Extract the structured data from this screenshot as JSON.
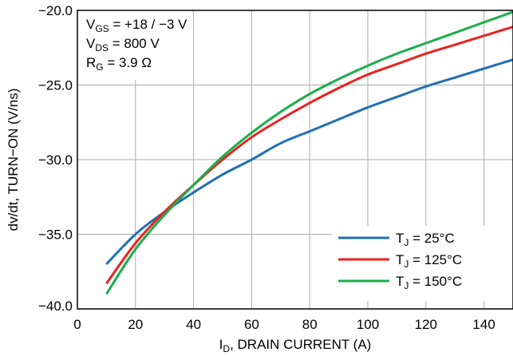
{
  "chart_data": {
    "type": "line",
    "title": "",
    "xlabel_main": "I",
    "xlabel_sub": "D",
    "xlabel_rest": ", DRAIN CURRENT (A)",
    "ylabel": "dv/dt, TURN−ON (V/ns)",
    "xlim": [
      0,
      150
    ],
    "ylim": [
      -40,
      -20
    ],
    "x_ticks": [
      0,
      20,
      40,
      60,
      80,
      100,
      120,
      140
    ],
    "x_tick_labels": [
      "0",
      "20",
      "40",
      "60",
      "80",
      "100",
      "120",
      "140"
    ],
    "y_ticks": [
      -40,
      -35,
      -30,
      -25,
      -20
    ],
    "y_tick_labels": [
      "−40.0",
      "−35.0",
      "−30.0",
      "−25.0",
      "−20.0"
    ],
    "grid": true,
    "conditions": [
      {
        "main": "V",
        "sub": "GS",
        "rest": " = +18 / −3 V"
      },
      {
        "main": "V",
        "sub": "DS",
        "rest": " = 800 V"
      },
      {
        "main": "R",
        "sub": "G",
        "rest": " = 3.9 Ω"
      }
    ],
    "legend_position": "bottom-right",
    "series": [
      {
        "legend_main": "T",
        "legend_sub": "J",
        "legend_rest": " = 25°C",
        "color": "#1f6fb5",
        "x": [
          10,
          20,
          30,
          40,
          50,
          60,
          70,
          80,
          90,
          100,
          110,
          120,
          130,
          140,
          150
        ],
        "y": [
          -37.0,
          -35.0,
          -33.5,
          -32.2,
          -31.0,
          -30.0,
          -28.9,
          -28.1,
          -27.3,
          -26.5,
          -25.8,
          -25.1,
          -24.5,
          -23.9,
          -23.3
        ]
      },
      {
        "legend_main": "T",
        "legend_sub": "J",
        "legend_rest": " = 125°C",
        "color": "#e8221f",
        "x": [
          10,
          20,
          30,
          40,
          50,
          60,
          70,
          80,
          90,
          100,
          110,
          120,
          130,
          140,
          150
        ],
        "y": [
          -38.3,
          -35.6,
          -33.5,
          -31.7,
          -30.0,
          -28.5,
          -27.3,
          -26.2,
          -25.2,
          -24.3,
          -23.6,
          -22.9,
          -22.3,
          -21.7,
          -21.1
        ]
      },
      {
        "legend_main": "T",
        "legend_sub": "J",
        "legend_rest": " = 150°C",
        "color": "#1aae4a",
        "x": [
          10,
          20,
          30,
          40,
          50,
          60,
          70,
          80,
          90,
          100,
          110,
          120,
          130,
          140,
          150
        ],
        "y": [
          -39.0,
          -36.0,
          -33.7,
          -31.7,
          -29.8,
          -28.2,
          -26.8,
          -25.6,
          -24.6,
          -23.7,
          -22.9,
          -22.2,
          -21.5,
          -20.8,
          -20.1
        ]
      }
    ]
  }
}
